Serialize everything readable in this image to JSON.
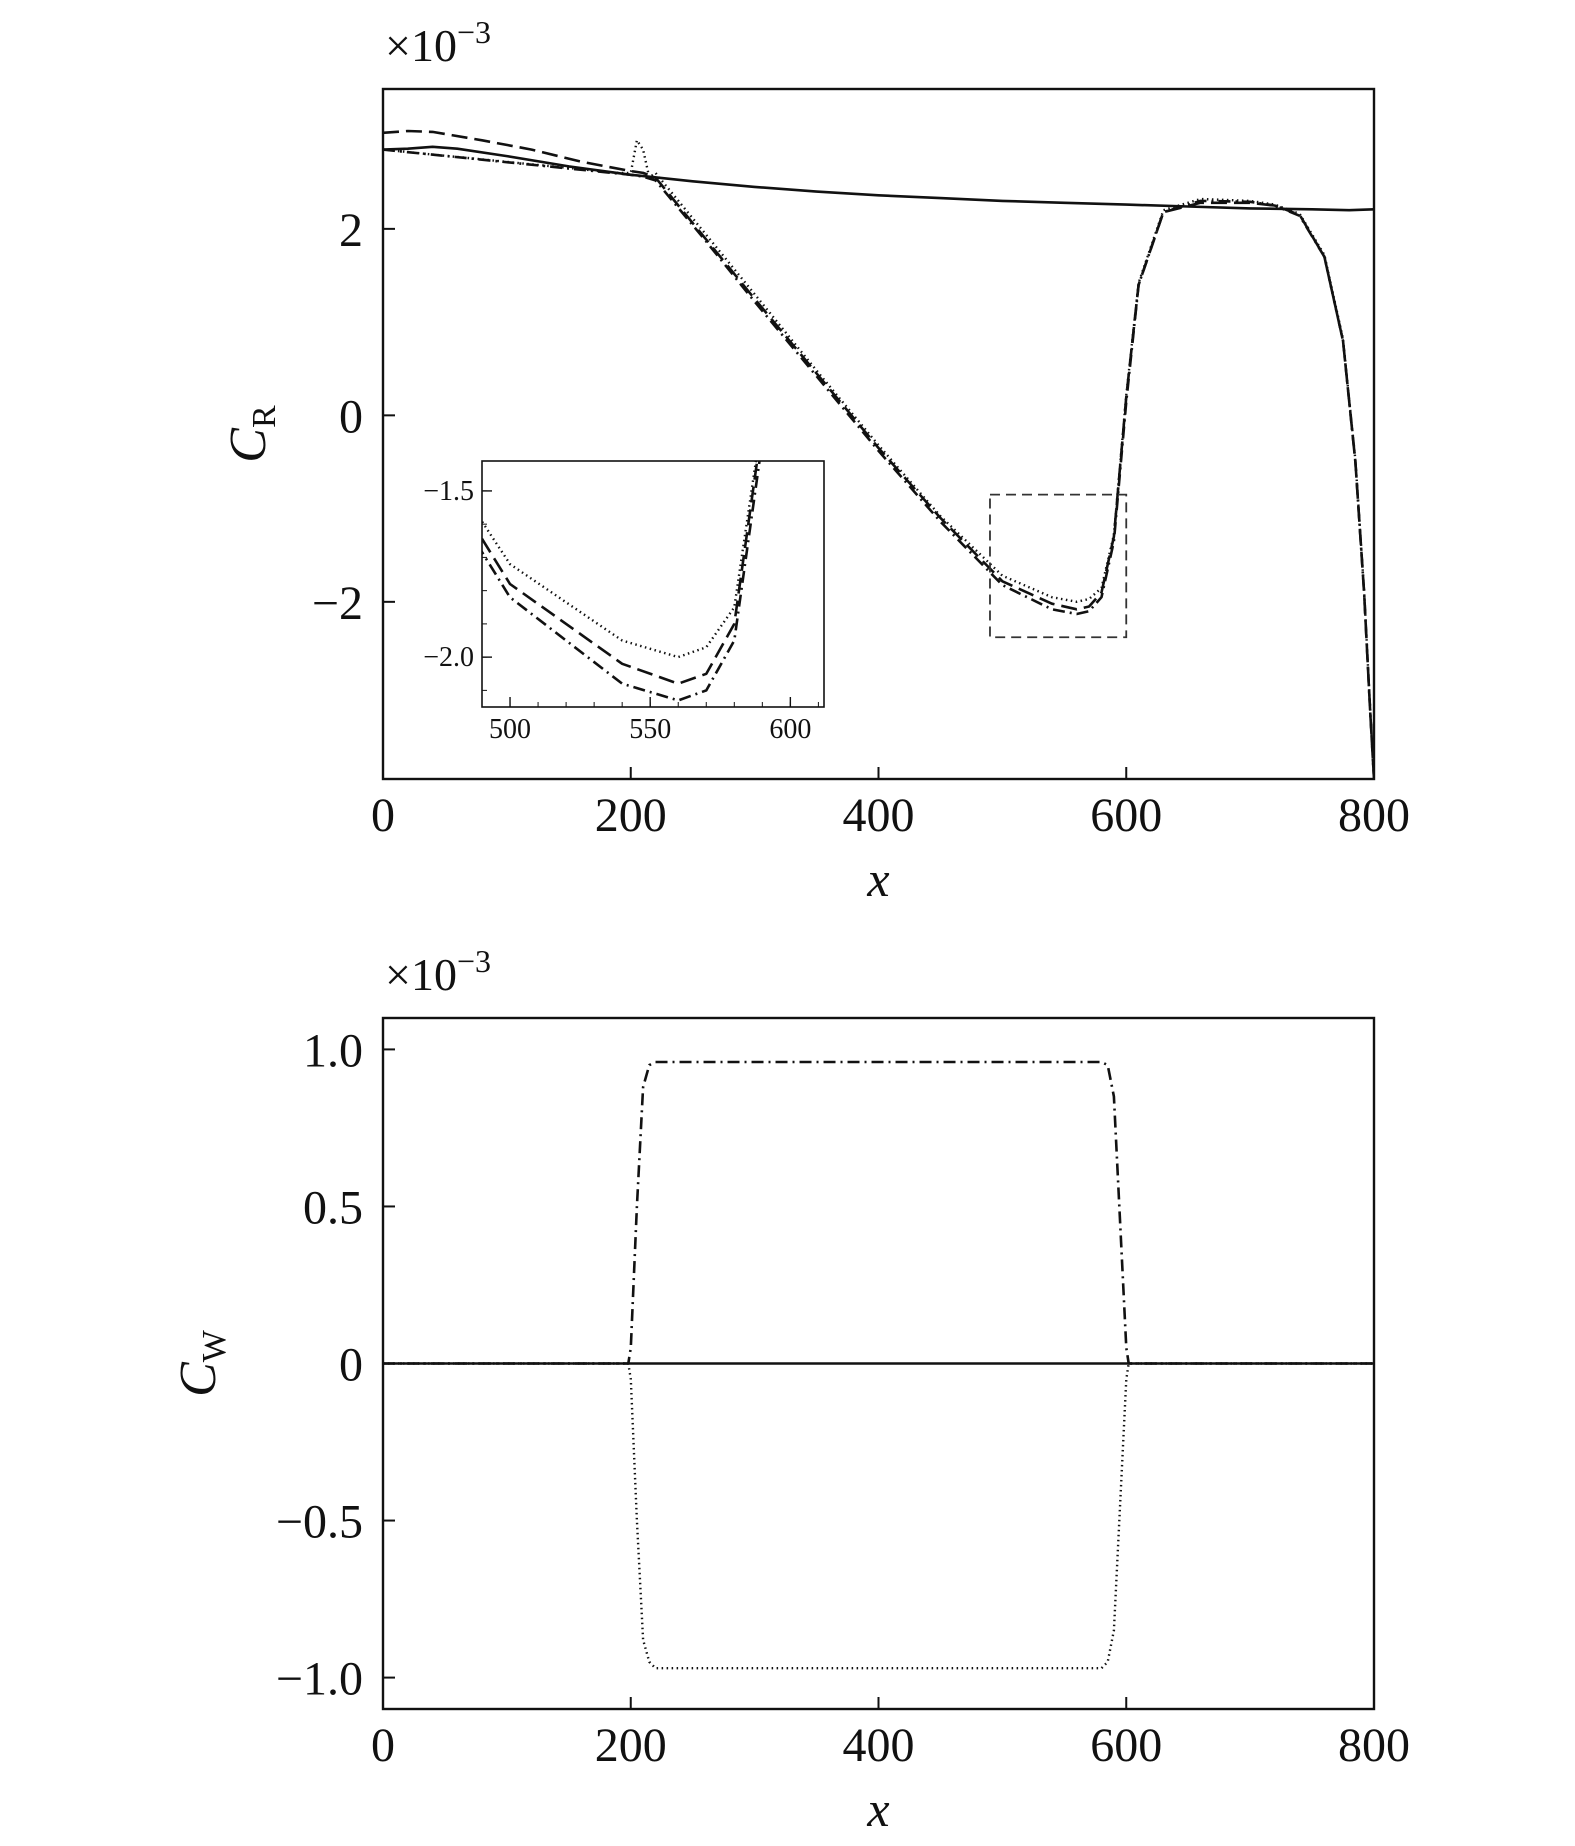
{
  "chart_data": [
    {
      "type": "line",
      "panel": "top",
      "exponent_label": "×10",
      "exponent_power": "−3",
      "xlabel": "x",
      "ylabel_main": "C",
      "ylabel_sub": "R",
      "xlim": [
        0,
        800
      ],
      "ylim": [
        -3.9,
        3.5
      ],
      "xticks": [
        0,
        200,
        400,
        600,
        800
      ],
      "xtick_labels": [
        "0",
        "200",
        "400",
        "600",
        "800"
      ],
      "yticks": [
        2,
        0,
        -2
      ],
      "ytick_labels": [
        "2",
        "0",
        "−2"
      ],
      "series": [
        {
          "style": "solid",
          "x": [
            0,
            20,
            40,
            60,
            100,
            150,
            200,
            250,
            300,
            350,
            400,
            450,
            500,
            550,
            600,
            650,
            700,
            750,
            780,
            800
          ],
          "y": [
            2.85,
            2.86,
            2.88,
            2.86,
            2.78,
            2.67,
            2.58,
            2.51,
            2.45,
            2.4,
            2.36,
            2.33,
            2.3,
            2.28,
            2.26,
            2.24,
            2.22,
            2.21,
            2.2,
            2.21
          ]
        },
        {
          "style": "dashed",
          "x": [
            0,
            20,
            40,
            80,
            120,
            160,
            200,
            210,
            220,
            260,
            300,
            350,
            400,
            450,
            500,
            540,
            560,
            570,
            580,
            590,
            600,
            610,
            630,
            660,
            700,
            720,
            740,
            760,
            775,
            785,
            792,
            797,
            800
          ],
          "y": [
            3.03,
            3.05,
            3.04,
            2.95,
            2.85,
            2.72,
            2.62,
            2.6,
            2.55,
            1.9,
            1.25,
            0.45,
            -0.35,
            -1.1,
            -1.78,
            -2.02,
            -2.08,
            -2.05,
            -1.9,
            -1.3,
            0.2,
            1.4,
            2.18,
            2.28,
            2.28,
            2.25,
            2.15,
            1.7,
            0.8,
            -0.5,
            -1.9,
            -3.2,
            -3.9
          ]
        },
        {
          "style": "dash-dot",
          "x": [
            0,
            200,
            210,
            220,
            260,
            300,
            350,
            400,
            450,
            500,
            540,
            560,
            570,
            580,
            590,
            600,
            610,
            630,
            660,
            700,
            720,
            740,
            760,
            775,
            785,
            792,
            797,
            800
          ],
          "y": [
            2.85,
            2.58,
            2.56,
            2.52,
            1.88,
            1.22,
            0.42,
            -0.38,
            -1.14,
            -1.82,
            -2.08,
            -2.13,
            -2.1,
            -1.95,
            -1.35,
            0.15,
            1.4,
            2.18,
            2.3,
            2.29,
            2.25,
            2.14,
            1.7,
            0.8,
            -0.5,
            -1.9,
            -3.2,
            -3.9
          ]
        },
        {
          "style": "dotted",
          "x": [
            0,
            190,
            200,
            205,
            210,
            215,
            220,
            260,
            300,
            350,
            400,
            450,
            500,
            540,
            560,
            570,
            580,
            590,
            600,
            610,
            630,
            660,
            700,
            720,
            740,
            760,
            775,
            785,
            792,
            797,
            800
          ],
          "y": [
            2.85,
            2.6,
            2.6,
            2.95,
            2.85,
            2.55,
            2.6,
            1.95,
            1.3,
            0.48,
            -0.32,
            -1.08,
            -1.72,
            -1.95,
            -2.0,
            -1.97,
            -1.85,
            -1.28,
            0.22,
            1.42,
            2.2,
            2.32,
            2.3,
            2.26,
            2.16,
            1.72,
            0.82,
            -0.48,
            -1.88,
            -3.18,
            -3.9
          ]
        }
      ],
      "zoom_box": {
        "x": [
          490,
          600
        ],
        "y": [
          -2.38,
          -0.85
        ]
      },
      "inset": {
        "xlim": [
          490,
          612
        ],
        "ylim": [
          -2.15,
          -1.41
        ],
        "xticks": [
          500,
          550,
          600
        ],
        "xtick_labels": [
          "500",
          "550",
          "600"
        ],
        "yticks": [
          -1.5,
          -2.0
        ],
        "ytick_labels": [
          "−1.5",
          "−2.0"
        ]
      }
    },
    {
      "type": "line",
      "panel": "bottom",
      "exponent_label": "×10",
      "exponent_power": "−3",
      "xlabel": "x",
      "ylabel_main": "C",
      "ylabel_sub": "W",
      "xlim": [
        0,
        800
      ],
      "ylim": [
        -1.1,
        1.1
      ],
      "xticks": [
        0,
        200,
        400,
        600,
        800
      ],
      "xtick_labels": [
        "0",
        "200",
        "400",
        "600",
        "800"
      ],
      "yticks": [
        1.0,
        0.5,
        0,
        -0.5,
        -1.0
      ],
      "ytick_labels": [
        "1.0",
        "0.5",
        "0",
        "−0.5",
        "−1.0"
      ],
      "series": [
        {
          "style": "solid",
          "x": [
            0,
            800
          ],
          "y": [
            0,
            0
          ]
        },
        {
          "style": "dash-dot",
          "x": [
            0,
            198,
            200,
            205,
            210,
            215,
            220,
            580,
            585,
            590,
            595,
            600,
            602,
            800
          ],
          "y": [
            0,
            0,
            0.05,
            0.5,
            0.88,
            0.95,
            0.96,
            0.96,
            0.95,
            0.85,
            0.45,
            0.05,
            0,
            0
          ]
        },
        {
          "style": "dotted",
          "x": [
            0,
            198,
            200,
            205,
            210,
            215,
            220,
            580,
            585,
            590,
            595,
            600,
            602,
            800
          ],
          "y": [
            0,
            0,
            -0.05,
            -0.5,
            -0.88,
            -0.95,
            -0.97,
            -0.97,
            -0.95,
            -0.85,
            -0.45,
            -0.05,
            0,
            0
          ]
        }
      ]
    }
  ]
}
